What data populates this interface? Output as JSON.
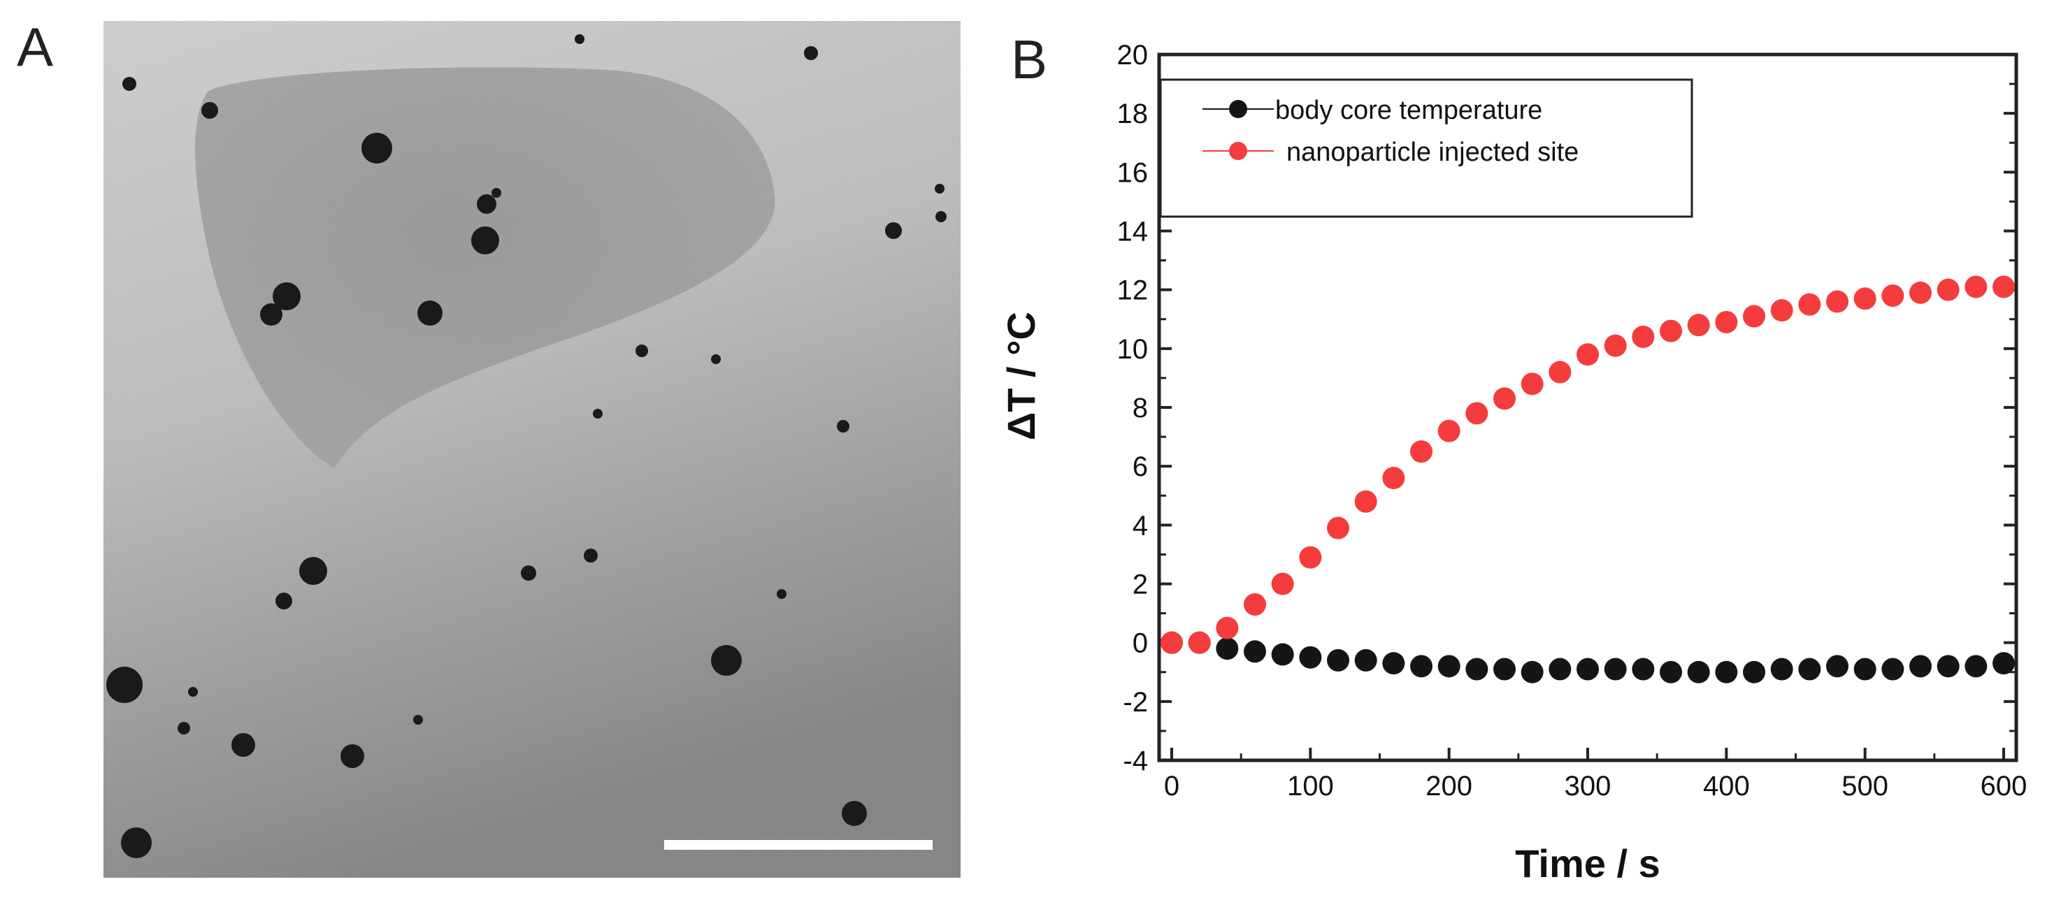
{
  "panels": {
    "a_label": "A",
    "b_label": "B"
  },
  "chart_data": {
    "type": "scatter",
    "xlabel": "Time / s",
    "ylabel": "ΔT / °C",
    "xlim": [
      0,
      600
    ],
    "ylim": [
      -4,
      20
    ],
    "x_ticks": [
      0,
      100,
      200,
      300,
      400,
      500,
      600
    ],
    "y_ticks": [
      -4,
      -2,
      0,
      2,
      4,
      6,
      8,
      10,
      12,
      14,
      16,
      18,
      20
    ],
    "legend_position": "top-left",
    "grid": false,
    "series": [
      {
        "name": "body core temperature",
        "color": "#151515",
        "x": [
          0,
          20,
          40,
          60,
          80,
          100,
          120,
          140,
          160,
          180,
          200,
          220,
          240,
          260,
          280,
          300,
          320,
          340,
          360,
          380,
          400,
          420,
          440,
          460,
          480,
          500,
          520,
          540,
          560,
          580,
          600
        ],
        "y": [
          0,
          0,
          -0.2,
          -0.3,
          -0.4,
          -0.5,
          -0.6,
          -0.6,
          -0.7,
          -0.8,
          -0.8,
          -0.9,
          -0.9,
          -1.0,
          -0.9,
          -0.9,
          -0.9,
          -0.9,
          -1.0,
          -1.0,
          -1.0,
          -1.0,
          -0.9,
          -0.9,
          -0.8,
          -0.9,
          -0.9,
          -0.8,
          -0.8,
          -0.8,
          -0.7
        ]
      },
      {
        "name": "nanoparticle injected site",
        "color": "#f43c3c",
        "x": [
          0,
          20,
          40,
          60,
          80,
          100,
          120,
          140,
          160,
          180,
          200,
          220,
          240,
          260,
          280,
          300,
          320,
          340,
          360,
          380,
          400,
          420,
          440,
          460,
          480,
          500,
          520,
          540,
          560,
          580,
          600
        ],
        "y": [
          0,
          0,
          0.5,
          1.3,
          2.0,
          2.9,
          3.9,
          4.8,
          5.6,
          6.5,
          7.2,
          7.8,
          8.3,
          8.8,
          9.2,
          9.8,
          10.1,
          10.4,
          10.6,
          10.8,
          10.9,
          11.1,
          11.3,
          11.5,
          11.6,
          11.7,
          11.8,
          11.9,
          12.0,
          12.1,
          12.1
        ]
      }
    ]
  }
}
